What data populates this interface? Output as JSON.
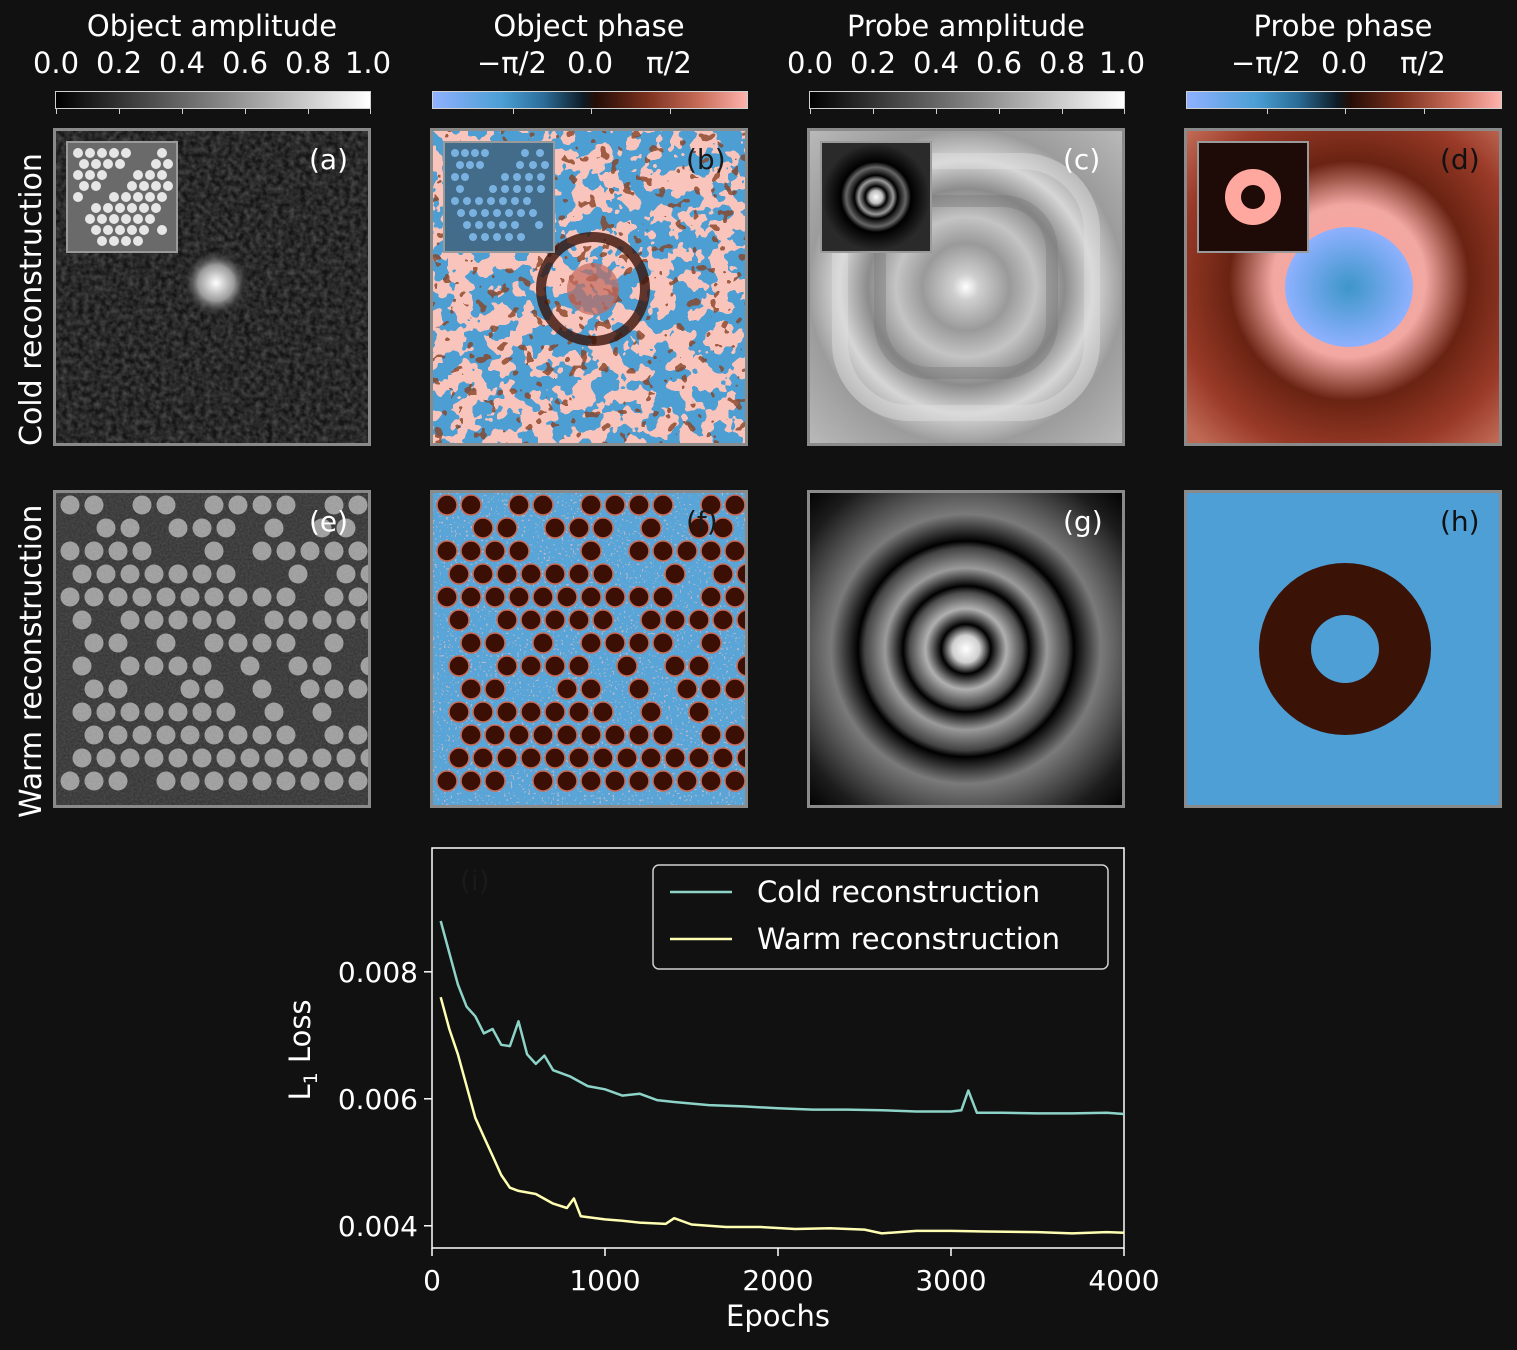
{
  "columns": [
    {
      "title": "Object amplitude",
      "ticks": [
        "0.0",
        "0.2",
        "0.4",
        "0.6",
        "0.8",
        "1.0"
      ]
    },
    {
      "title": "Object phase",
      "ticks": [
        "−π/2",
        "0.0",
        "π/2"
      ]
    },
    {
      "title": "Probe amplitude",
      "ticks": [
        "0.0",
        "0.2",
        "0.4",
        "0.6",
        "0.8",
        "1.0"
      ]
    },
    {
      "title": "Probe phase",
      "ticks": [
        "−π/2",
        "0.0",
        "π/2"
      ]
    }
  ],
  "rows": [
    "Cold reconstruction",
    "Warm reconstruction"
  ],
  "panel_labels": [
    "(a)",
    "(b)",
    "(c)",
    "(d)",
    "(e)",
    "(f)",
    "(g)",
    "(h)"
  ],
  "colors": {
    "background": "#111111",
    "cold": "#8dd3c7",
    "warm": "#ffffb3",
    "phase_neg": "#4b9fd4",
    "phase_pos": "#f2a49b",
    "phase_zero_dark": "#3b0f03"
  },
  "chart_data": {
    "type": "line",
    "panel_label": "(i)",
    "xlabel": "Epochs",
    "ylabel": "L1 Loss",
    "xlim": [
      0,
      4000
    ],
    "ylim": [
      0.00365,
      0.00995
    ],
    "xticks": [
      0,
      1000,
      2000,
      3000,
      4000
    ],
    "yticks": [
      0.004,
      0.006,
      0.008
    ],
    "legend_position": "top-right",
    "series": [
      {
        "name": "Cold reconstruction",
        "color": "#8dd3c7",
        "points": [
          [
            50,
            0.0088
          ],
          [
            100,
            0.0083
          ],
          [
            150,
            0.0078
          ],
          [
            200,
            0.00745
          ],
          [
            250,
            0.0073
          ],
          [
            300,
            0.00703
          ],
          [
            350,
            0.0071
          ],
          [
            400,
            0.00685
          ],
          [
            450,
            0.00683
          ],
          [
            500,
            0.00722
          ],
          [
            550,
            0.0067
          ],
          [
            600,
            0.00655
          ],
          [
            650,
            0.00668
          ],
          [
            700,
            0.00645
          ],
          [
            800,
            0.00635
          ],
          [
            900,
            0.0062
          ],
          [
            1000,
            0.00615
          ],
          [
            1100,
            0.00605
          ],
          [
            1200,
            0.00608
          ],
          [
            1300,
            0.00598
          ],
          [
            1400,
            0.00595
          ],
          [
            1600,
            0.0059
          ],
          [
            1800,
            0.00588
          ],
          [
            2000,
            0.00585
          ],
          [
            2200,
            0.00583
          ],
          [
            2400,
            0.00583
          ],
          [
            2600,
            0.00582
          ],
          [
            2800,
            0.0058
          ],
          [
            3000,
            0.0058
          ],
          [
            3060,
            0.00582
          ],
          [
            3100,
            0.00613
          ],
          [
            3150,
            0.00578
          ],
          [
            3300,
            0.00578
          ],
          [
            3500,
            0.00577
          ],
          [
            3700,
            0.00577
          ],
          [
            3900,
            0.00578
          ],
          [
            4000,
            0.00576
          ]
        ]
      },
      {
        "name": "Warm reconstruction",
        "color": "#ffffb3",
        "points": [
          [
            50,
            0.0076
          ],
          [
            100,
            0.0071
          ],
          [
            150,
            0.0067
          ],
          [
            200,
            0.0062
          ],
          [
            250,
            0.0057
          ],
          [
            300,
            0.0054
          ],
          [
            350,
            0.0051
          ],
          [
            400,
            0.0048
          ],
          [
            450,
            0.0046
          ],
          [
            500,
            0.00455
          ],
          [
            600,
            0.0045
          ],
          [
            700,
            0.00435
          ],
          [
            780,
            0.00428
          ],
          [
            820,
            0.00443
          ],
          [
            860,
            0.00415
          ],
          [
            1000,
            0.0041
          ],
          [
            1100,
            0.00408
          ],
          [
            1200,
            0.00405
          ],
          [
            1350,
            0.00403
          ],
          [
            1400,
            0.00412
          ],
          [
            1500,
            0.00402
          ],
          [
            1700,
            0.00398
          ],
          [
            1900,
            0.00398
          ],
          [
            2100,
            0.00395
          ],
          [
            2300,
            0.00396
          ],
          [
            2500,
            0.00394
          ],
          [
            2600,
            0.00388
          ],
          [
            2800,
            0.00392
          ],
          [
            3000,
            0.00392
          ],
          [
            3200,
            0.00391
          ],
          [
            3500,
            0.0039
          ],
          [
            3700,
            0.00388
          ],
          [
            3900,
            0.0039
          ],
          [
            4000,
            0.00389
          ]
        ]
      }
    ]
  }
}
